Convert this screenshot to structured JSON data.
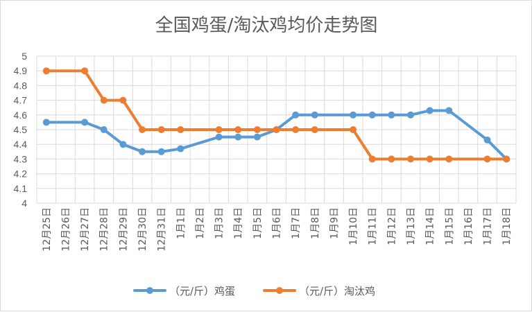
{
  "chart_data": {
    "type": "line",
    "title": "全国鸡蛋/淘汰鸡均价走势图",
    "xlabel": "",
    "ylabel": "",
    "ylim": [
      4,
      5
    ],
    "yticks": [
      "4",
      "4.1",
      "4.2",
      "4.3",
      "4.4",
      "4.5",
      "4.6",
      "4.7",
      "4.8",
      "4.9",
      "5"
    ],
    "grid": true,
    "legend_position": "bottom",
    "categories": [
      "12月25日",
      "12月26日",
      "12月27日",
      "12月28日",
      "12月29日",
      "12月30日",
      "12月31日",
      "1月1日",
      "1月2日",
      "1月3日",
      "1月4日",
      "1月5日",
      "1月6日",
      "1月7日",
      "1月8日",
      "1月9日",
      "1月10日",
      "1月11日",
      "1月12日",
      "1月13日",
      "1月14日",
      "1月15日",
      "1月16日",
      "1月17日",
      "1月18日"
    ],
    "series": [
      {
        "name": "（元/斤）鸡蛋",
        "color": "#5b9bd5",
        "values": [
          4.55,
          null,
          4.55,
          4.5,
          4.4,
          4.35,
          4.35,
          4.37,
          null,
          4.45,
          4.45,
          4.45,
          4.5,
          4.6,
          4.6,
          null,
          4.6,
          4.6,
          4.6,
          4.6,
          4.63,
          4.63,
          null,
          4.43,
          4.3
        ]
      },
      {
        "name": "（元/斤）淘汰鸡",
        "color": "#ed7d31",
        "values": [
          4.9,
          null,
          4.9,
          4.7,
          4.7,
          4.5,
          4.5,
          4.5,
          null,
          4.5,
          4.5,
          4.5,
          4.5,
          4.5,
          4.5,
          null,
          4.5,
          4.3,
          4.3,
          4.3,
          4.3,
          4.3,
          null,
          4.3,
          4.3
        ]
      }
    ]
  }
}
